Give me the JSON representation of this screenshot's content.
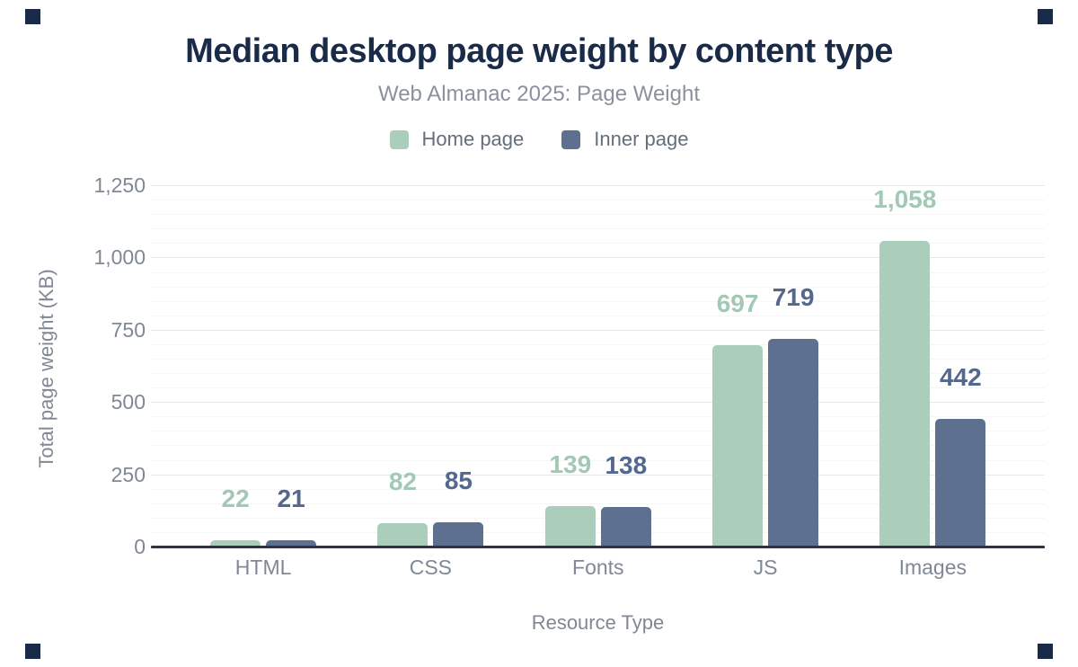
{
  "figure": {
    "corner_mark_color": "#1a2b49"
  },
  "chart_data": {
    "type": "bar",
    "title": "Median desktop page weight by content type",
    "subtitle": "Web Almanac 2025: Page Weight",
    "xlabel": "Resource Type",
    "ylabel": "Total page weight (KB)",
    "categories": [
      "HTML",
      "CSS",
      "Fonts",
      "JS",
      "Images"
    ],
    "series": [
      {
        "name": "Home page",
        "color": "#aacebb",
        "label_color": "#a2c9b4",
        "values": [
          22,
          82,
          139,
          697,
          1058
        ]
      },
      {
        "name": "Inner page",
        "color": "#5d7090",
        "label_color": "#54688e",
        "values": [
          21,
          85,
          138,
          719,
          442
        ]
      }
    ],
    "ylim": [
      0,
      1250
    ],
    "ytick_interval": 250,
    "yminor_interval": 50,
    "ytick_labels": [
      "0",
      "250",
      "500",
      "750",
      "1,000",
      "1,250"
    ],
    "grid": true,
    "legend_position": "top",
    "styles": {
      "title_color": "#1a2b49",
      "subtitle_color": "#8a919c",
      "axis_label_color": "#7f8894",
      "axis_title_color": "#7f8894",
      "legend_text_color": "#646e7c",
      "major_grid_color": "#e8e8e8",
      "minor_grid_color": "#f6f6f6",
      "axis_line_color": "#2e3440"
    }
  }
}
